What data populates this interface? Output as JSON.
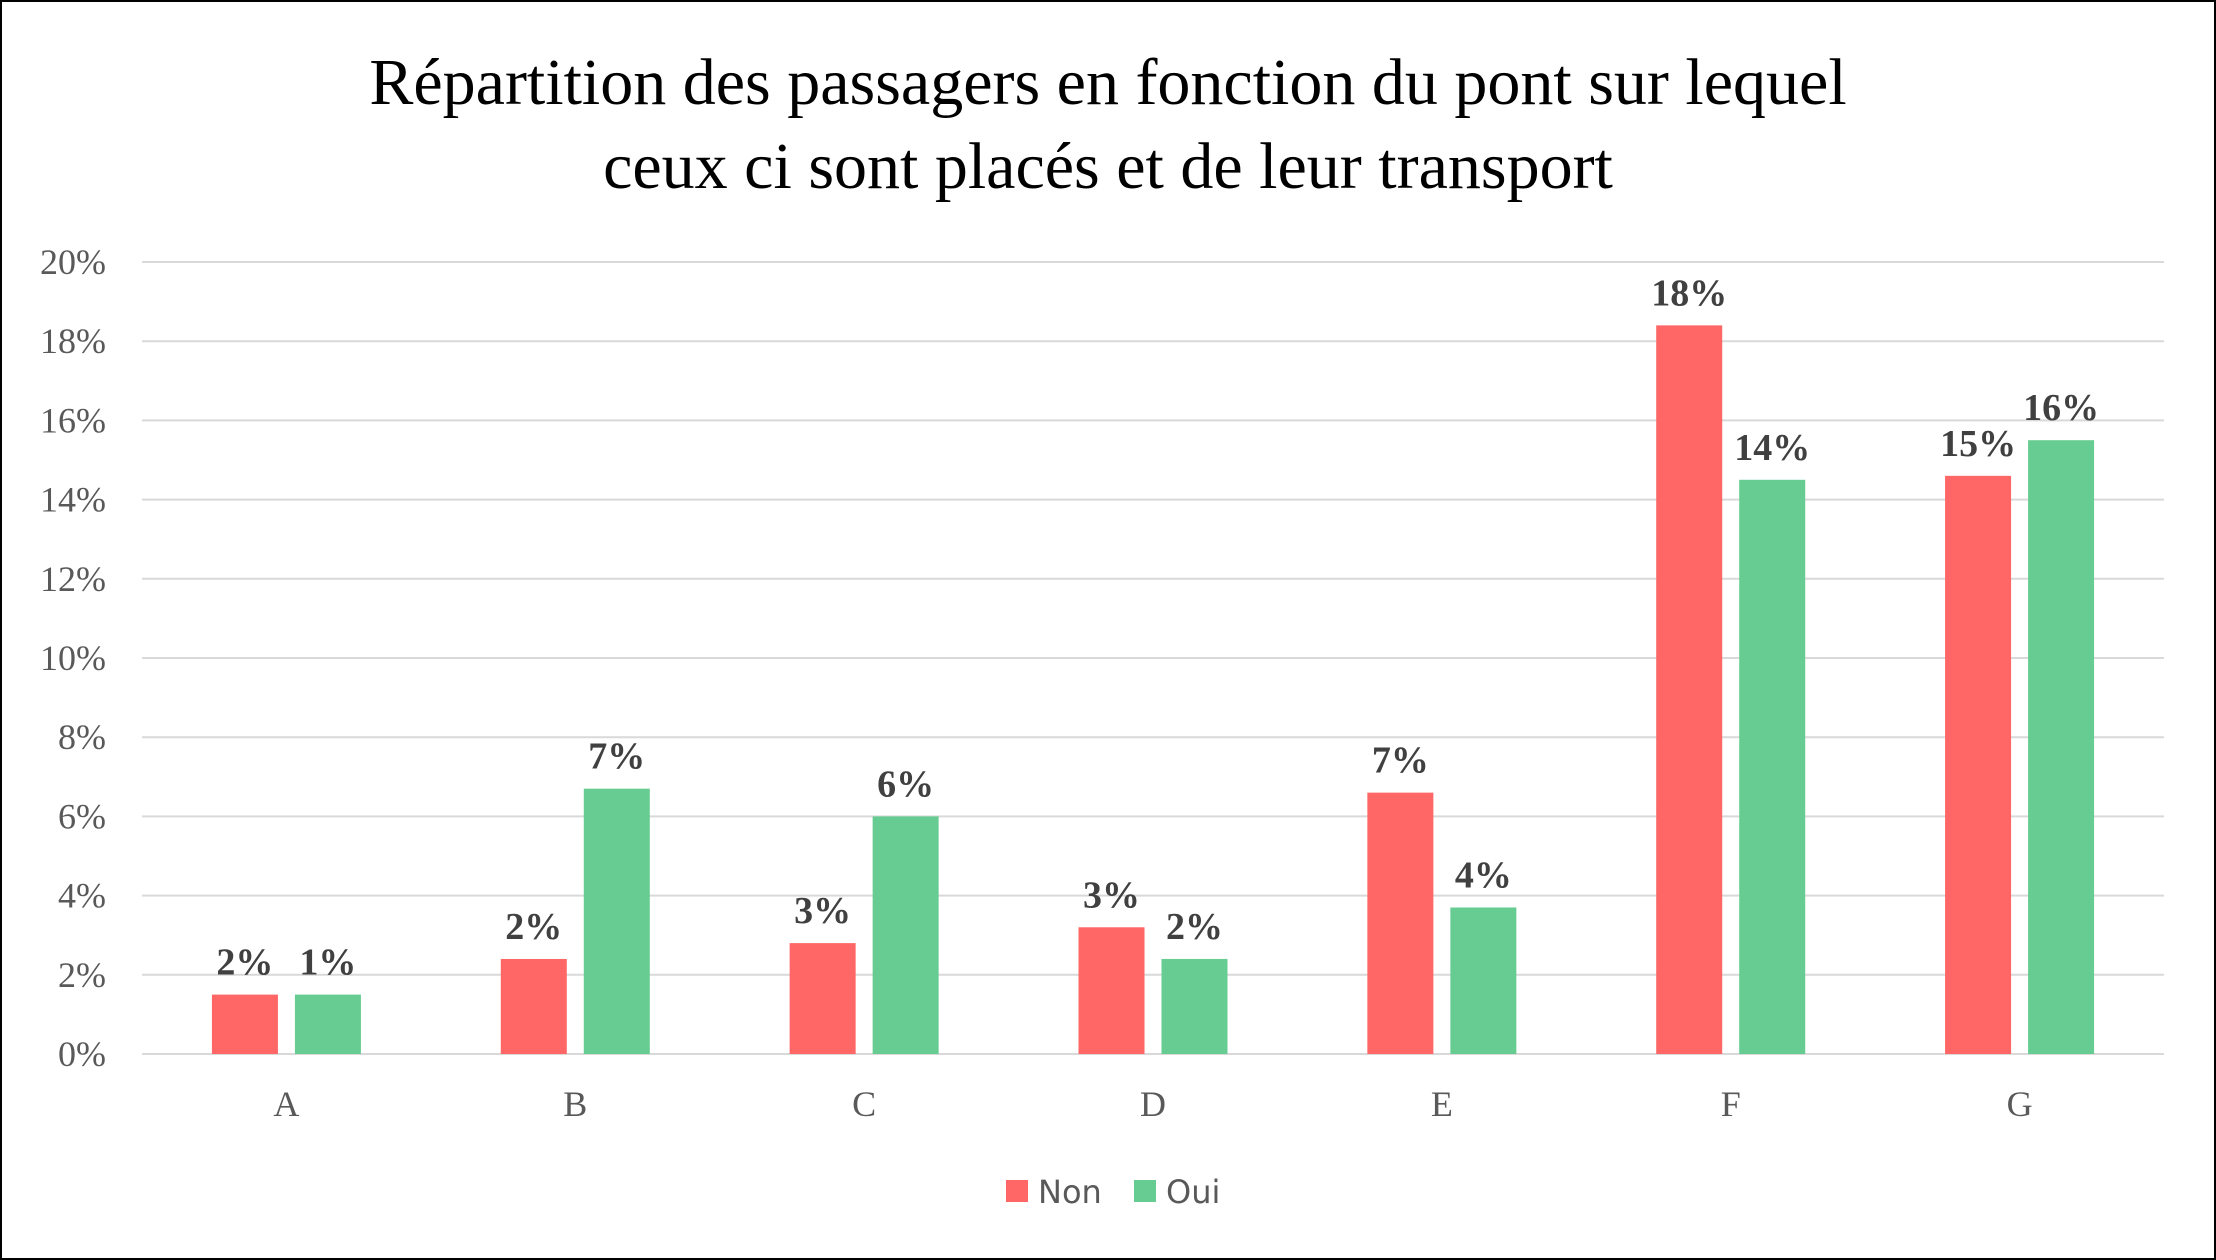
{
  "chart_data": {
    "type": "bar",
    "title_lines": [
      "Répartition des passagers en fonction du pont sur lequel",
      "ceux ci sont placés et de leur transport"
    ],
    "categories": [
      "A",
      "B",
      "C",
      "D",
      "E",
      "F",
      "G"
    ],
    "series": [
      {
        "name": "Non",
        "color": "#ff6666",
        "values": [
          1.5,
          2.4,
          2.8,
          3.2,
          6.6,
          18.4,
          14.6
        ],
        "labels": [
          "2%",
          "2%",
          "3%",
          "3%",
          "7%",
          "18%",
          "15%"
        ]
      },
      {
        "name": "Oui",
        "color": "#66cc91",
        "values": [
          1.5,
          6.7,
          6.0,
          2.4,
          3.7,
          14.5,
          15.5
        ],
        "labels": [
          "1%",
          "7%",
          "6%",
          "2%",
          "4%",
          "14%",
          "16%"
        ]
      }
    ],
    "ylim": [
      0,
      20
    ],
    "yticks": [
      "0%",
      "2%",
      "4%",
      "6%",
      "8%",
      "10%",
      "12%",
      "14%",
      "16%",
      "18%",
      "20%"
    ],
    "grid": true,
    "legend_position": "bottom"
  }
}
